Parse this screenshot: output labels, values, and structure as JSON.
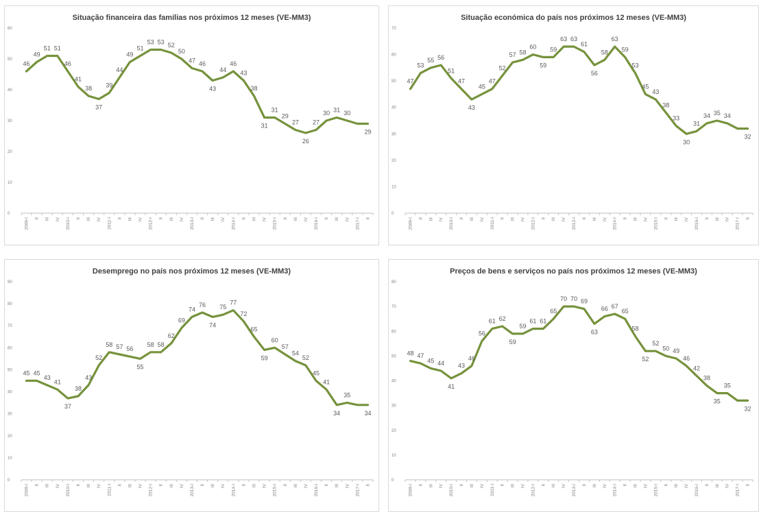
{
  "chart_data": [
    {
      "type": "line",
      "title": "Situação financeira das famílias nos próximos 12 meses (VE-MM3)",
      "ylim": [
        0,
        60
      ],
      "yticks": [
        0,
        10,
        20,
        30,
        40,
        50,
        60
      ],
      "grid": false,
      "line_color": "#76923c",
      "categories": [
        "2009-I",
        "II",
        "III",
        "IV",
        "2010-I",
        "II",
        "III",
        "IV",
        "2011-I",
        "II",
        "III",
        "IV",
        "2012-I",
        "II",
        "III",
        "IV",
        "2013-I",
        "II",
        "III",
        "IV",
        "2014-I",
        "II",
        "III",
        "IV",
        "2015-I",
        "II",
        "III",
        "IV",
        "2016-I",
        "II",
        "III",
        "IV",
        "2017-I",
        "II"
      ],
      "values": [
        46,
        49,
        51,
        51,
        46,
        41,
        38,
        37,
        39,
        44,
        49,
        51,
        53,
        53,
        52,
        50,
        47,
        46,
        43,
        44,
        46,
        43,
        38,
        31,
        31,
        29,
        27,
        26,
        27,
        30,
        31,
        30,
        29,
        29
      ],
      "data_labels": [
        "46",
        "49",
        "51",
        "51",
        "46",
        "41",
        "38",
        "37",
        "39",
        "44",
        "49",
        "51",
        "53",
        "53",
        "52",
        "50",
        "47",
        "46",
        "43",
        "44",
        "46",
        "43",
        "38",
        "31",
        "31",
        "29",
        "27",
        "26",
        "27",
        "30",
        "31",
        "30",
        "",
        "29"
      ]
    },
    {
      "type": "line",
      "title": "Situação económica do país nos próximos 12 meses (VE-MM3)",
      "ylim": [
        0,
        70
      ],
      "yticks": [
        0,
        10,
        20,
        30,
        40,
        50,
        60,
        70
      ],
      "grid": false,
      "line_color": "#76923c",
      "categories": [
        "2009-I",
        "II",
        "III",
        "IV",
        "2010-I",
        "II",
        "III",
        "IV",
        "2011-I",
        "II",
        "III",
        "IV",
        "2012-I",
        "II",
        "III",
        "IV",
        "2013-I",
        "II",
        "III",
        "IV",
        "2014-I",
        "II",
        "III",
        "IV",
        "2015-I",
        "II",
        "III",
        "IV",
        "2016-I",
        "II",
        "III",
        "IV",
        "2017-I",
        "II"
      ],
      "values": [
        47,
        53,
        55,
        56,
        51,
        47,
        43,
        45,
        47,
        52,
        57,
        58,
        60,
        59,
        59,
        63,
        63,
        61,
        56,
        58,
        63,
        59,
        53,
        45,
        43,
        38,
        33,
        30,
        31,
        34,
        35,
        34,
        32,
        32
      ],
      "data_labels": [
        "47",
        "53",
        "55",
        "56",
        "51",
        "47",
        "43",
        "45",
        "47",
        "52",
        "57",
        "58",
        "60",
        "59",
        "59",
        "63",
        "63",
        "61",
        "56",
        "58",
        "63",
        "59",
        "53",
        "45",
        "43",
        "38",
        "33",
        "30",
        "31",
        "34",
        "35",
        "34",
        "",
        "32"
      ]
    },
    {
      "type": "line",
      "title": "Desemprego no país nos próximos 12 meses (VE-MM3)",
      "ylim": [
        0,
        90
      ],
      "yticks": [
        0,
        10,
        20,
        30,
        40,
        50,
        60,
        70,
        80,
        90
      ],
      "grid": false,
      "line_color": "#76923c",
      "categories": [
        "2009-I",
        "II",
        "III",
        "IV",
        "2010-I",
        "II",
        "III",
        "IV",
        "2011-I",
        "II",
        "III",
        "IV",
        "2012-I",
        "II",
        "III",
        "IV",
        "2013-I",
        "II",
        "III",
        "IV",
        "2014-I",
        "II",
        "III",
        "IV",
        "2015-I",
        "II",
        "III",
        "IV",
        "2016-I",
        "II",
        "III",
        "IV",
        "2017-I",
        "II"
      ],
      "values": [
        45,
        45,
        43,
        41,
        37,
        38,
        43,
        52,
        58,
        57,
        56,
        55,
        58,
        58,
        62,
        69,
        74,
        76,
        74,
        75,
        77,
        72,
        65,
        59,
        60,
        57,
        54,
        52,
        45,
        41,
        34,
        35,
        34,
        34
      ],
      "data_labels": [
        "45",
        "45",
        "43",
        "41",
        "37",
        "38",
        "43",
        "52",
        "58",
        "57",
        "56",
        "55",
        "58",
        "58",
        "62",
        "69",
        "74",
        "76",
        "74",
        "75",
        "77",
        "72",
        "65",
        "59",
        "60",
        "57",
        "54",
        "52",
        "45",
        "41",
        "34",
        "35",
        "",
        "34"
      ]
    },
    {
      "type": "line",
      "title": "Preços de bens e serviços no país nos próximos 12 meses (VE-MM3)",
      "ylim": [
        0,
        80
      ],
      "yticks": [
        0,
        10,
        20,
        30,
        40,
        50,
        60,
        70,
        80
      ],
      "grid": false,
      "line_color": "#76923c",
      "categories": [
        "2009-I",
        "II",
        "III",
        "IV",
        "2010-I",
        "II",
        "III",
        "IV",
        "2011-I",
        "II",
        "III",
        "IV",
        "2012-I",
        "II",
        "III",
        "IV",
        "2013-I",
        "II",
        "III",
        "IV",
        "2014-I",
        "II",
        "III",
        "IV",
        "2015-I",
        "II",
        "III",
        "IV",
        "2016-I",
        "II",
        "III",
        "IV",
        "2017-I",
        "II"
      ],
      "values": [
        48,
        47,
        45,
        44,
        41,
        43,
        46,
        56,
        61,
        62,
        59,
        59,
        61,
        61,
        65,
        70,
        70,
        69,
        63,
        66,
        67,
        65,
        58,
        52,
        52,
        50,
        49,
        46,
        42,
        38,
        35,
        35,
        32,
        32
      ],
      "data_labels": [
        "48",
        "47",
        "45",
        "44",
        "41",
        "43",
        "46",
        "56",
        "61",
        "62",
        "59",
        "59",
        "61",
        "61",
        "65",
        "70",
        "70",
        "69",
        "63",
        "66",
        "67",
        "65",
        "58",
        "52",
        "52",
        "50",
        "49",
        "46",
        "42",
        "38",
        "35",
        "35",
        "",
        "32"
      ]
    }
  ]
}
